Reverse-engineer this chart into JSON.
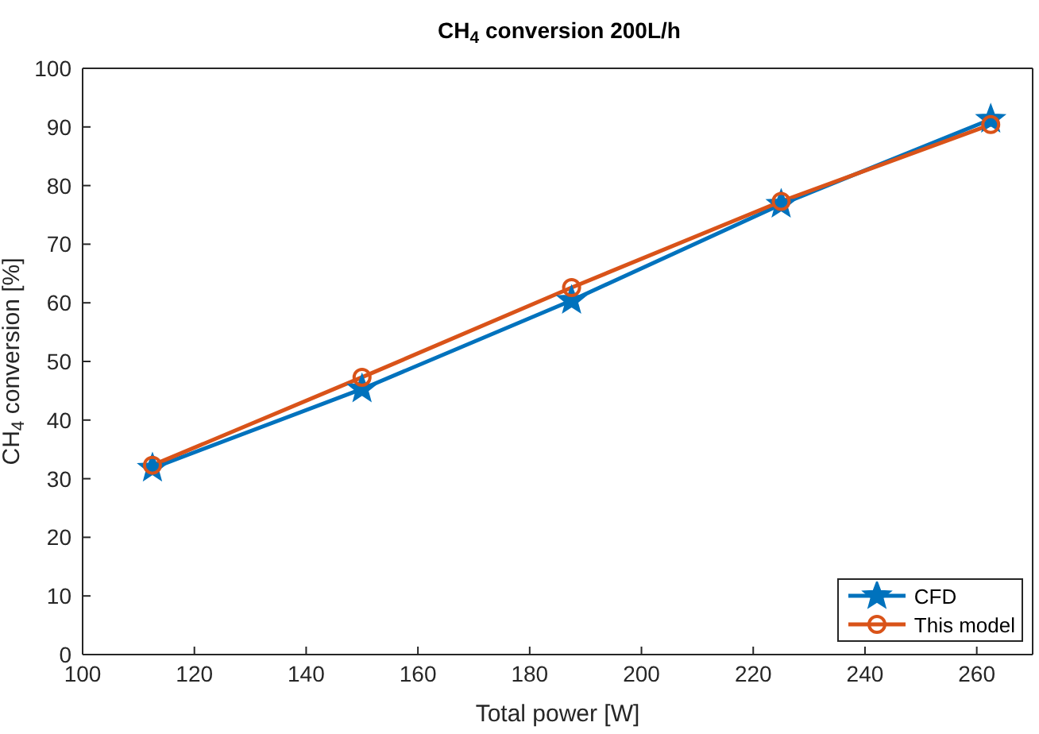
{
  "chart_data": {
    "type": "line",
    "title": "CH$_{4}$ conversion 200L/h",
    "xlabel": "Total power [W]",
    "ylabel": "CH$_{4}$ conversion [%]",
    "x": [
      112.5,
      150,
      187.5,
      225,
      262.5
    ],
    "series": [
      {
        "name": "CFD",
        "color": "#0072bd",
        "marker": "star",
        "values": [
          31.8,
          45.3,
          60.4,
          76.8,
          91.3
        ]
      },
      {
        "name": "This model",
        "color": "#d95319",
        "marker": "circle",
        "values": [
          32.3,
          47.3,
          62.6,
          77.3,
          90.4
        ]
      }
    ],
    "xlim": [
      100,
      270
    ],
    "xticks": [
      100,
      120,
      140,
      160,
      180,
      200,
      220,
      240,
      260
    ],
    "ylim": [
      0,
      100
    ],
    "yticks": [
      0,
      10,
      20,
      30,
      40,
      50,
      60,
      70,
      80,
      90,
      100
    ],
    "legend": "bottom right",
    "line_style": "solid"
  }
}
